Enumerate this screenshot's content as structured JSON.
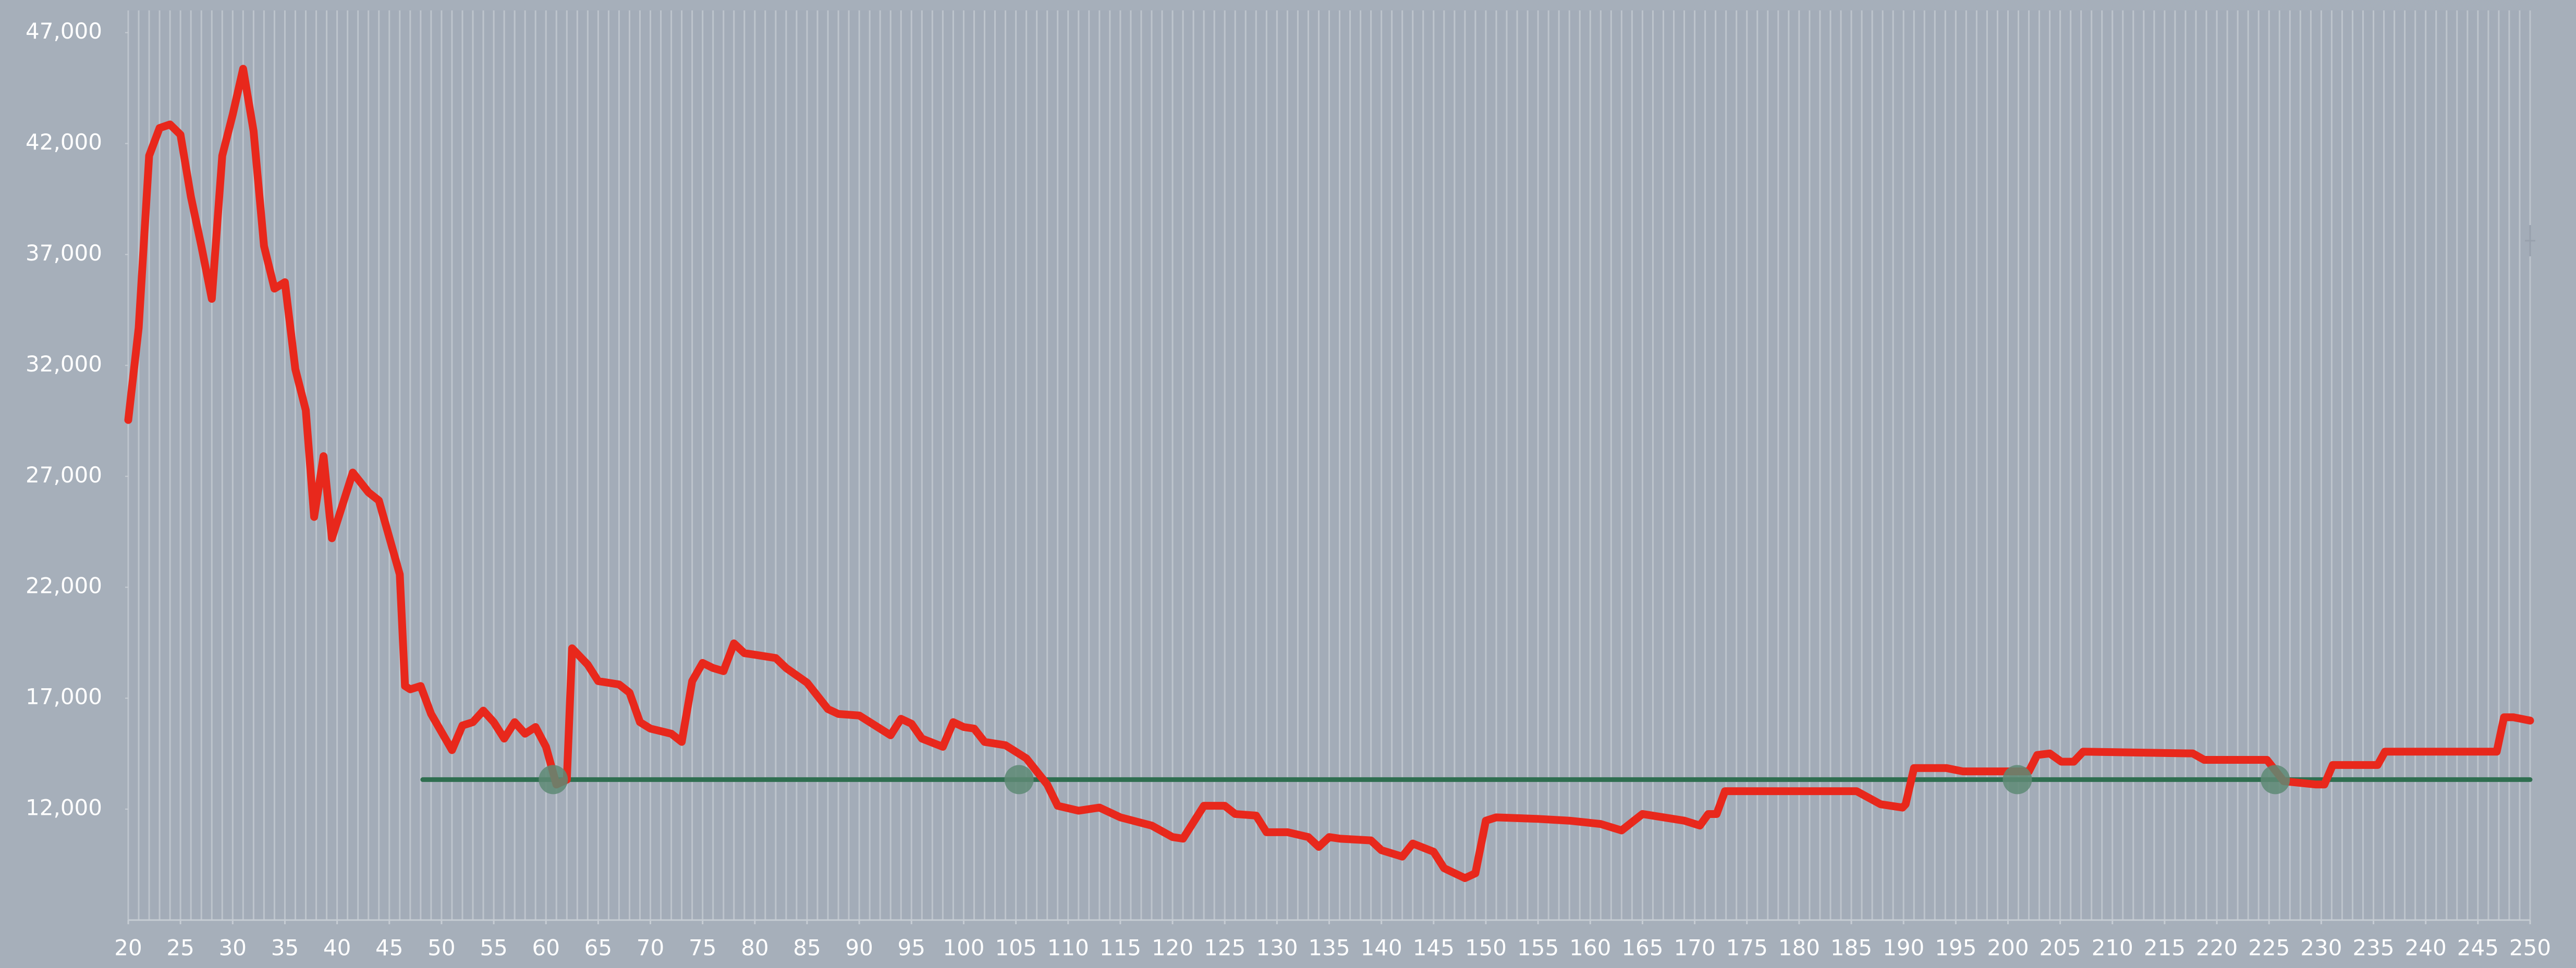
{
  "chart_data": {
    "type": "line",
    "xlim": [
      20,
      250
    ],
    "xticks": [
      20,
      25,
      30,
      35,
      40,
      45,
      50,
      55,
      60,
      65,
      70,
      75,
      80,
      85,
      90,
      95,
      100,
      105,
      110,
      115,
      120,
      125,
      130,
      135,
      140,
      145,
      150,
      155,
      160,
      165,
      170,
      175,
      180,
      185,
      190,
      195,
      200,
      205,
      210,
      215,
      220,
      225,
      230,
      235,
      240,
      245,
      250
    ],
    "ylim": [
      7000,
      48000
    ],
    "yticks": [
      {
        "value": 12000,
        "label": "12,000"
      },
      {
        "value": 17000,
        "label": "17,000"
      },
      {
        "value": 22000,
        "label": "22,000"
      },
      {
        "value": 27000,
        "label": "27,000"
      },
      {
        "value": 32000,
        "label": "32,000"
      },
      {
        "value": 37000,
        "label": "37,000"
      },
      {
        "value": 42000,
        "label": "42,000"
      },
      {
        "value": 47000,
        "label": "47,000"
      }
    ],
    "grid": true,
    "series": [
      {
        "color": "#e8281c",
        "x": [
          20,
          21,
          22,
          23,
          24,
          25,
          26,
          27,
          28,
          29,
          30,
          31,
          32,
          33,
          34,
          35,
          36,
          37,
          37.8,
          38.7,
          39.5,
          41.5,
          43,
          44,
          46,
          46.5,
          47,
          48,
          49,
          51,
          52,
          53,
          54,
          55,
          56,
          57,
          58,
          59,
          60,
          61,
          62,
          62.5,
          64,
          65,
          67,
          68,
          69,
          70,
          72,
          73,
          74,
          75,
          76,
          77,
          78,
          79,
          80,
          82,
          83,
          85,
          87,
          88,
          90,
          93,
          94,
          95,
          96,
          98,
          99,
          100,
          101,
          102,
          104,
          106,
          108,
          109,
          111,
          113,
          115,
          118,
          120,
          121,
          123,
          125,
          126,
          128,
          129,
          131,
          133,
          134,
          135,
          136,
          139,
          140,
          142,
          143,
          145,
          146,
          148,
          149,
          150,
          151,
          155,
          158,
          161,
          163,
          165,
          167,
          169,
          170.5,
          171.3,
          172.1,
          172.9,
          185.5,
          187.8,
          189.9,
          190.2,
          191,
          194.1,
          195.7,
          200.4,
          202,
          202.8,
          204,
          205.1,
          206.3,
          207.2,
          217.7,
          218.8,
          224.8,
          226.4,
          229.5,
          230.3,
          231.1,
          235.4,
          236.1,
          246.8,
          247.5,
          248.4,
          250
        ],
        "values": [
          29540,
          33700,
          41450,
          42700,
          42860,
          42400,
          39600,
          37380,
          35000,
          41450,
          43300,
          45370,
          42560,
          37380,
          35460,
          35750,
          31830,
          29980,
          25170,
          27910,
          24210,
          27170,
          26280,
          25910,
          22580,
          17550,
          17400,
          17550,
          16290,
          14660,
          15770,
          15920,
          16440,
          15920,
          15180,
          15920,
          15400,
          15700,
          14810,
          13110,
          13330,
          19250,
          18510,
          17770,
          17620,
          17250,
          15920,
          15630,
          15400,
          15030,
          17770,
          18590,
          18360,
          18220,
          19470,
          19030,
          18960,
          18810,
          18360,
          17700,
          16510,
          16290,
          16220,
          15330,
          16070,
          15850,
          15180,
          14810,
          15920,
          15700,
          15630,
          15030,
          14880,
          14290,
          13110,
          12150,
          11930,
          12070,
          11630,
          11260,
          10740,
          10670,
          12150,
          12150,
          11780,
          11710,
          10960,
          10960,
          10740,
          10300,
          10740,
          10670,
          10590,
          10150,
          9860,
          10450,
          10080,
          9340,
          8890,
          9110,
          11480,
          11630,
          11560,
          11480,
          11330,
          11040,
          11780,
          11630,
          11480,
          11260,
          11780,
          11780,
          12810,
          12810,
          12220,
          12070,
          12220,
          13850,
          13850,
          13700,
          13700,
          13700,
          14440,
          14510,
          14140,
          14140,
          14590,
          14510,
          14220,
          14220,
          13260,
          13110,
          13110,
          13990,
          13990,
          14590,
          14590,
          16140,
          16140,
          15990
        ]
      },
      {
        "color": "#2f6e50",
        "x": [
          48.2,
          250
        ],
        "values": [
          13330,
          13330
        ]
      }
    ],
    "points": {
      "color": "#5e8a74",
      "x": [
        60.7,
        105.3,
        200.9,
        225.6
      ],
      "values": [
        13330,
        13330,
        13330,
        13330
      ]
    }
  }
}
